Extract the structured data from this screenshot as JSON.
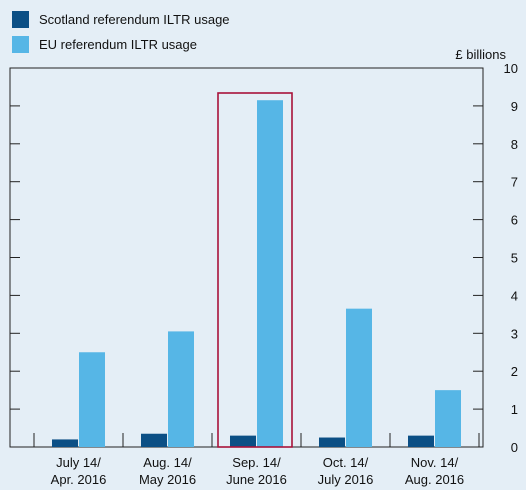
{
  "chart_data": {
    "type": "bar",
    "unit_label": "£ billions",
    "categories": [
      [
        "July 14/",
        "Apr. 2016"
      ],
      [
        "Aug. 14/",
        "May 2016"
      ],
      [
        "Sep. 14/",
        "June 2016"
      ],
      [
        "Oct. 14/",
        "July 2016"
      ],
      [
        "Nov. 14/",
        "Aug. 2016"
      ]
    ],
    "series": [
      {
        "name": "Scotland referendum ILTR usage",
        "color": "#0b4f85",
        "values": [
          0.2,
          0.35,
          0.3,
          0.25,
          0.3
        ]
      },
      {
        "name": "EU referendum ILTR usage",
        "color": "#56b6e6",
        "values": [
          2.5,
          3.05,
          9.15,
          3.65,
          1.5
        ]
      }
    ],
    "ylim": [
      0,
      10
    ],
    "yticks": [
      0,
      1,
      2,
      3,
      4,
      5,
      6,
      7,
      8,
      9,
      10
    ],
    "highlight": {
      "category_index": 2,
      "color": "#a8123a"
    },
    "grid": false,
    "legend_position": "top-left"
  }
}
